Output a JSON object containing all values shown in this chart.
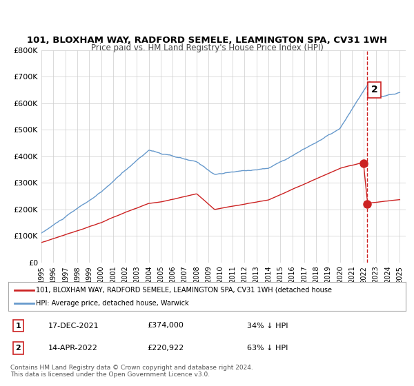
{
  "title_line1": "101, BLOXHAM WAY, RADFORD SEMELE, LEAMINGTON SPA, CV31 1WH",
  "title_line2": "Price paid vs. HM Land Registry's House Price Index (HPI)",
  "xlabel": "",
  "ylabel": "",
  "ylim": [
    0,
    800000
  ],
  "yticks": [
    0,
    100000,
    200000,
    300000,
    400000,
    500000,
    600000,
    700000,
    800000
  ],
  "ytick_labels": [
    "£0",
    "£100K",
    "£200K",
    "£300K",
    "£400K",
    "£500K",
    "£600K",
    "£700K",
    "£800K"
  ],
  "xlim_start": 1995.0,
  "xlim_end": 2025.5,
  "hpi_color": "#6699cc",
  "price_color": "#cc2222",
  "dashed_line_color": "#cc2222",
  "dashed_line_x": 2022.29,
  "marker1_x": 2021.96,
  "marker1_y": 374000,
  "marker2_x": 2022.29,
  "marker2_y": 220922,
  "legend_text1": "101, BLOXHAM WAY, RADFORD SEMELE, LEAMINGTON SPA, CV31 1WH (detached house",
  "legend_text2": "HPI: Average price, detached house, Warwick",
  "annotation1_label": "1",
  "annotation1_date": "17-DEC-2021",
  "annotation1_price": "£374,000",
  "annotation1_hpi": "34% ↓ HPI",
  "annotation2_label": "2",
  "annotation2_date": "14-APR-2022",
  "annotation2_price": "£220,922",
  "annotation2_hpi": "63% ↓ HPI",
  "footer1": "Contains HM Land Registry data © Crown copyright and database right 2024.",
  "footer2": "This data is licensed under the Open Government Licence v3.0.",
  "background_color": "#ffffff",
  "grid_color": "#cccccc"
}
